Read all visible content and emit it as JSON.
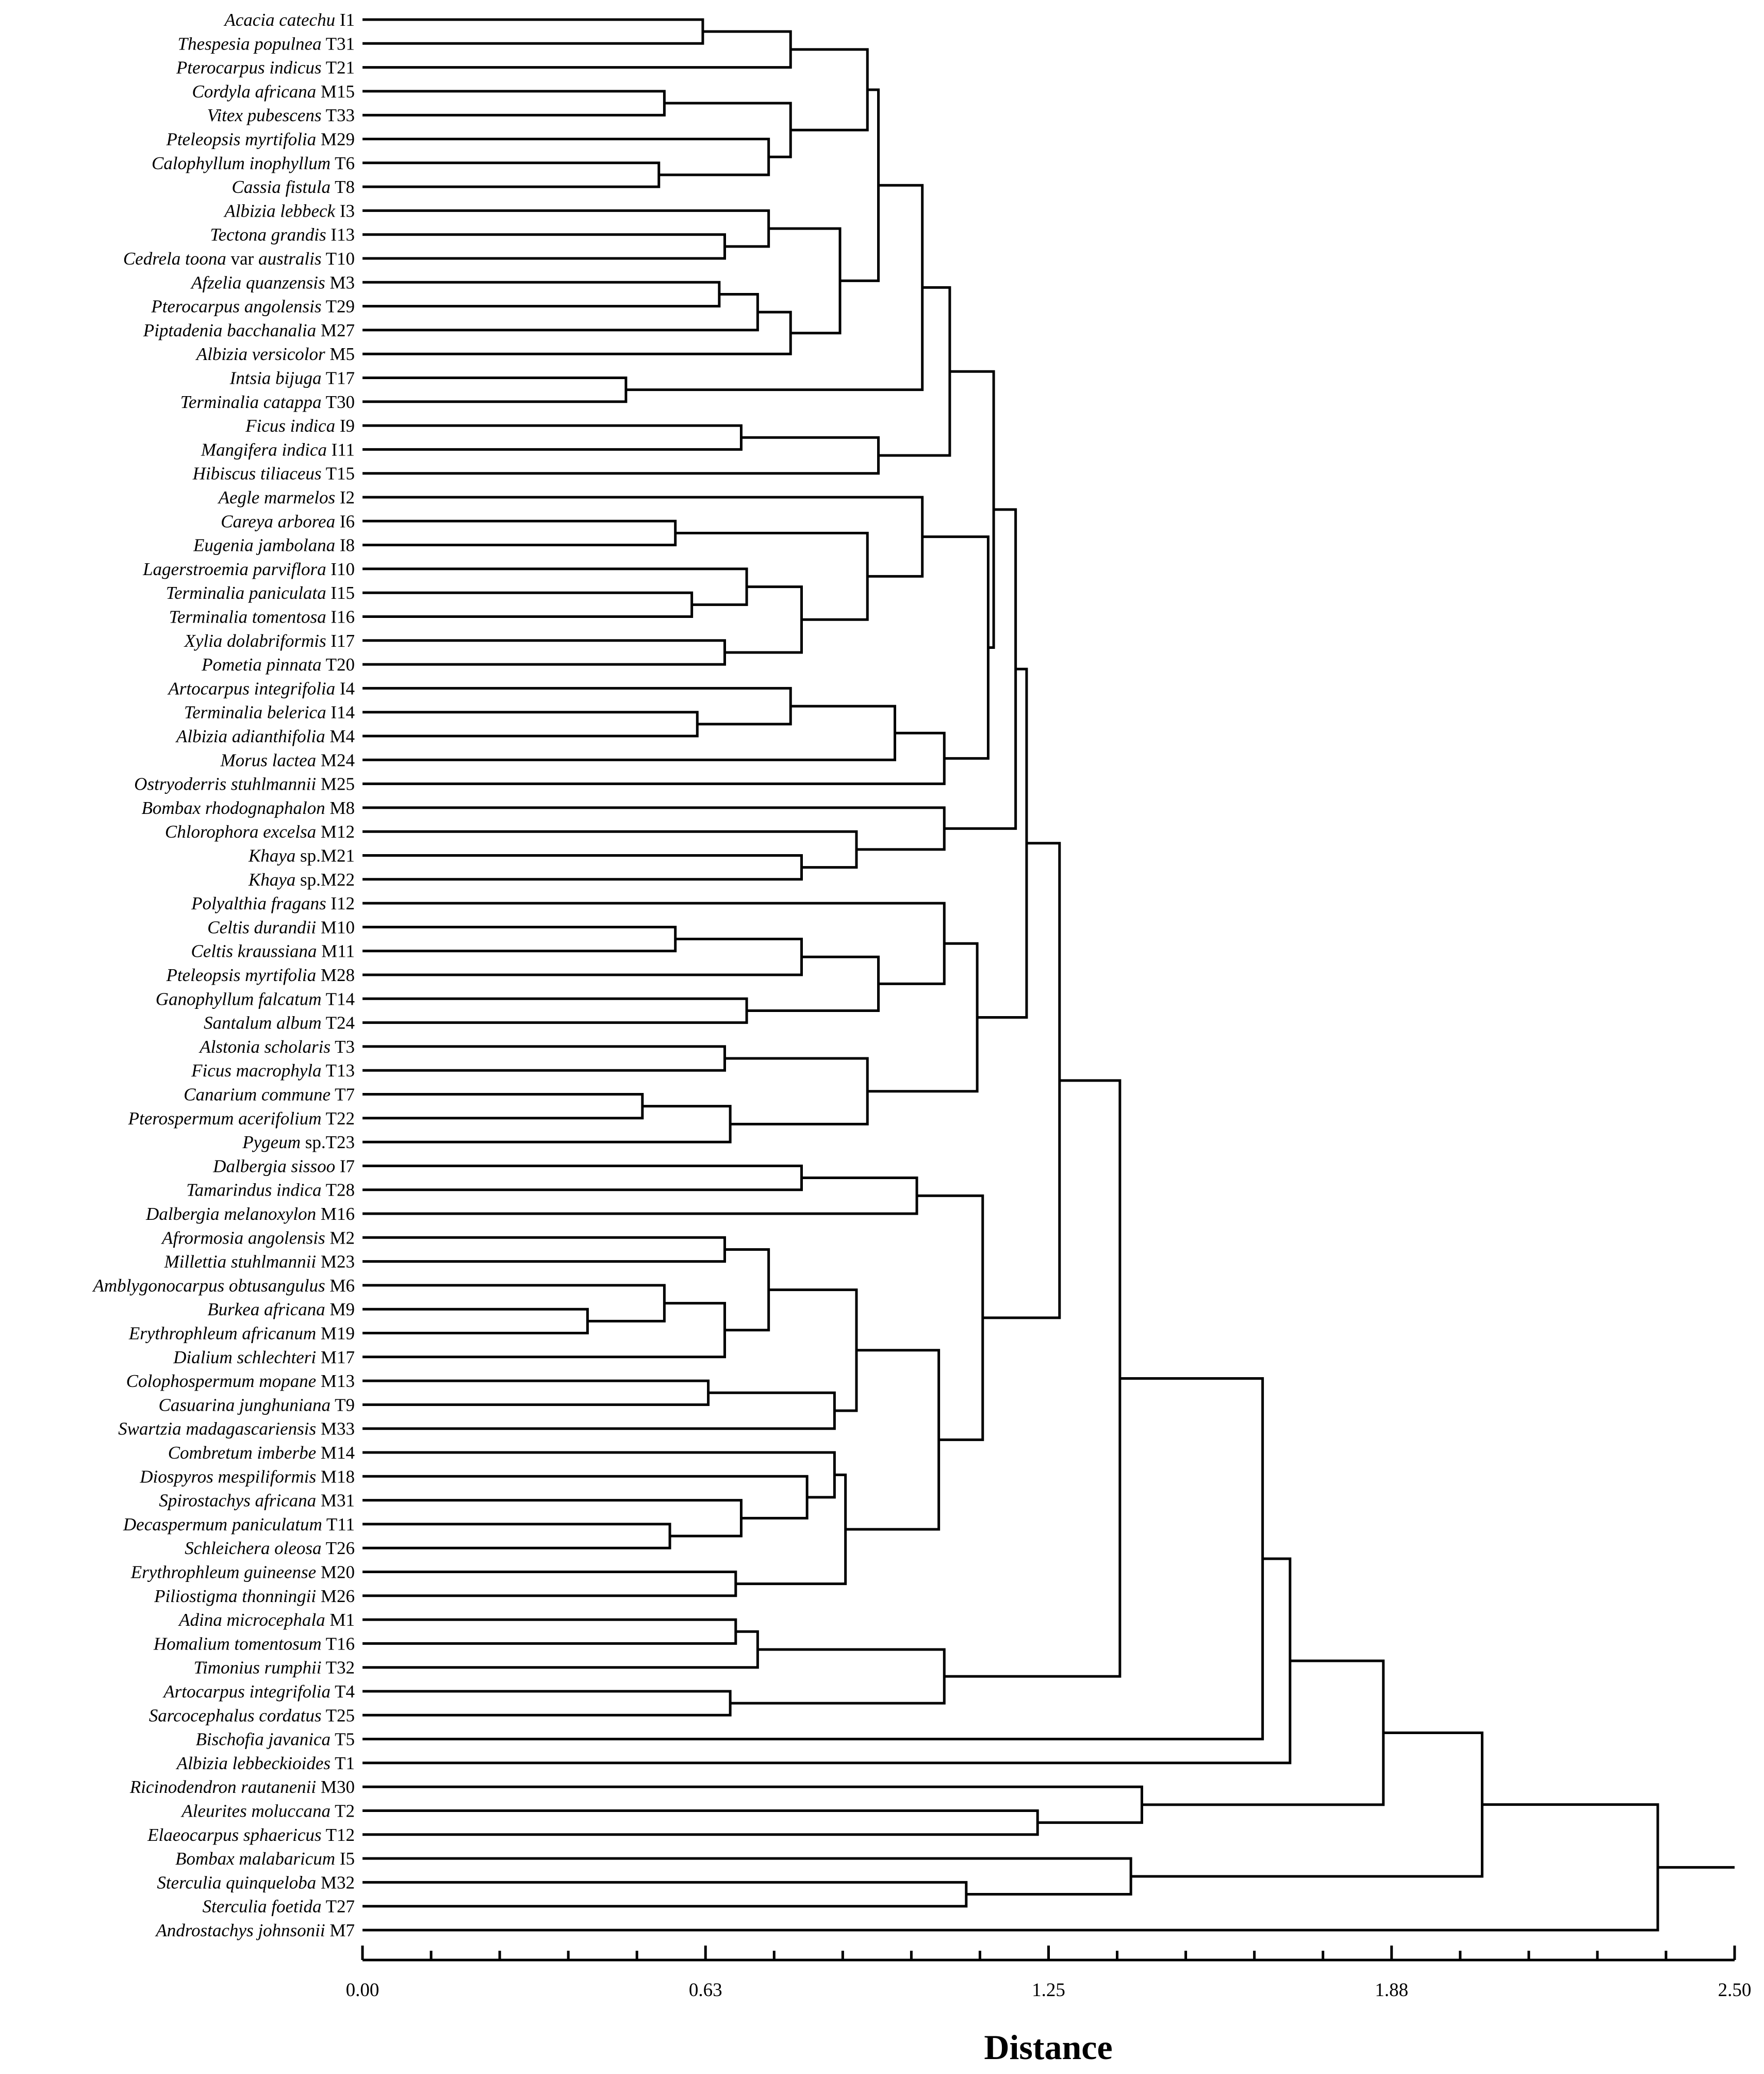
{
  "chart_data": {
    "type": "dendrogram",
    "title": "",
    "xlabel": "Distance",
    "xlim": [
      0,
      2.5
    ],
    "x_ticks": [
      0.0,
      0.63,
      1.25,
      1.88,
      2.5
    ],
    "x_tick_labels": [
      "0.00",
      "0.63",
      "1.25",
      "1.88",
      "2.50"
    ],
    "minor_ticks_per_interval": 4,
    "leaves": [
      {
        "name": "Acacia catechu",
        "code": "I1"
      },
      {
        "name": "Thespesia populnea",
        "code": "T31"
      },
      {
        "name": "Pterocarpus indicus",
        "code": "T21"
      },
      {
        "name": "Cordyla africana",
        "code": "M15"
      },
      {
        "name": "Vitex pubescens",
        "code": "T33"
      },
      {
        "name": "Pteleopsis myrtifolia",
        "code": "M29"
      },
      {
        "name": "Calophyllum inophyllum",
        "code": "T6"
      },
      {
        "name": "Cassia fistula",
        "code": "T8"
      },
      {
        "name": "Albizia lebbeck",
        "code": "I3"
      },
      {
        "name": "Tectona grandis",
        "code": "I13"
      },
      {
        "name": "Cedrela toona",
        "mid": "var",
        "name2": "australis",
        "code": "T10"
      },
      {
        "name": "Afzelia quanzensis",
        "code": "M3"
      },
      {
        "name": "Pterocarpus angolensis",
        "code": "T29"
      },
      {
        "name": "Piptadenia bacchanalia",
        "code": "M27"
      },
      {
        "name": "Albizia versicolor",
        "code": "M5"
      },
      {
        "name": "Intsia bijuga",
        "code": "T17"
      },
      {
        "name": "Terminalia catappa",
        "code": "T30"
      },
      {
        "name": "Ficus indica",
        "code": "I9"
      },
      {
        "name": "Mangifera indica",
        "code": "I11"
      },
      {
        "name": "Hibiscus tiliaceus",
        "code": "T15"
      },
      {
        "name": "Aegle marmelos",
        "code": "I2"
      },
      {
        "name": "Careya arborea",
        "code": "I6"
      },
      {
        "name": "Eugenia jambolana",
        "code": "I8"
      },
      {
        "name": "Lagerstroemia parviflora",
        "code": "I10"
      },
      {
        "name": "Terminalia paniculata",
        "code": "I15"
      },
      {
        "name": "Terminalia tomentosa",
        "code": "I16"
      },
      {
        "name": "Xylia dolabriformis",
        "code": "I17"
      },
      {
        "name": "Pometia pinnata",
        "code": "T20"
      },
      {
        "name": "Artocarpus integrifolia",
        "code": "I4"
      },
      {
        "name": "Terminalia belerica",
        "code": "I14"
      },
      {
        "name": "Albizia adianthifolia",
        "code": "M4"
      },
      {
        "name": "Morus lactea",
        "code": "M24"
      },
      {
        "name": "Ostryoderris stuhlmannii",
        "code": "M25"
      },
      {
        "name": "Bombax rhodognaphalon",
        "code": "M8"
      },
      {
        "name": "Chlorophora excelsa",
        "code": "M12"
      },
      {
        "name": "Khaya",
        "code": "sp.M21"
      },
      {
        "name": "Khaya",
        "code": "sp.M22"
      },
      {
        "name": "Polyalthia fragans",
        "code": "I12"
      },
      {
        "name": "Celtis durandii",
        "code": "M10"
      },
      {
        "name": "Celtis kraussiana",
        "code": "M11"
      },
      {
        "name": "Pteleopsis myrtifolia",
        "code": "M28"
      },
      {
        "name": "Ganophyllum falcatum",
        "code": "T14"
      },
      {
        "name": "Santalum album",
        "code": "T24"
      },
      {
        "name": "Alstonia scholaris",
        "code": "T3"
      },
      {
        "name": "Ficus macrophyla",
        "code": "T13"
      },
      {
        "name": "Canarium commune",
        "code": "T7"
      },
      {
        "name": "Pterospermum acerifolium",
        "code": "T22"
      },
      {
        "name": "Pygeum",
        "code": "sp.T23"
      },
      {
        "name": "Dalbergia sissoo",
        "code": "I7"
      },
      {
        "name": "Tamarindus indica",
        "code": "T28"
      },
      {
        "name": "Dalbergia melanoxylon",
        "code": "M16"
      },
      {
        "name": "Afrormosia angolensis",
        "code": "M2"
      },
      {
        "name": "Millettia stuhlmannii",
        "code": "M23"
      },
      {
        "name": "Amblygonocarpus obtusangulus",
        "code": "M6"
      },
      {
        "name": "Burkea africana",
        "code": "M9"
      },
      {
        "name": "Erythrophleum africanum",
        "code": "M19"
      },
      {
        "name": "Dialium schlechteri",
        "code": "M17"
      },
      {
        "name": "Colophospermum mopane",
        "code": "M13"
      },
      {
        "name": "Casuarina junghuniana",
        "code": "T9"
      },
      {
        "name": "Swartzia madagascariensis",
        "code": "M33"
      },
      {
        "name": "Combretum imberbe",
        "code": "M14"
      },
      {
        "name": "Diospyros mespiliformis",
        "code": "M18"
      },
      {
        "name": "Spirostachys africana",
        "code": "M31"
      },
      {
        "name": "Decaspermum paniculatum",
        "code": "T11"
      },
      {
        "name": "Schleichera oleosa",
        "code": "T26"
      },
      {
        "name": "Erythrophleum guineense",
        "code": "M20"
      },
      {
        "name": "Piliostigma thonningii",
        "code": "M26"
      },
      {
        "name": "Adina microcephala",
        "code": "M1"
      },
      {
        "name": "Homalium tomentosum",
        "code": "T16"
      },
      {
        "name": "Timonius rumphii",
        "code": "T32"
      },
      {
        "name": "Artocarpus integrifolia",
        "code": "T4"
      },
      {
        "name": "Sarcocephalus cordatus",
        "code": "T25"
      },
      {
        "name": "Bischofia javanica",
        "code": "T5"
      },
      {
        "name": "Albizia lebbeckioides",
        "code": "T1"
      },
      {
        "name": "Ricinodendron rautanenii",
        "code": "M30"
      },
      {
        "name": "Aleurites moluccana",
        "code": "T2"
      },
      {
        "name": "Elaeocarpus sphaericus",
        "code": "T12"
      },
      {
        "name": "Bombax malabaricum",
        "code": "I5"
      },
      {
        "name": "Sterculia quinqueloba",
        "code": "M32"
      },
      {
        "name": "Sterculia foetida",
        "code": "T27"
      },
      {
        "name": "Androstachys johnsonii",
        "code": "M7"
      }
    ],
    "merges": [
      {
        "id": "A",
        "a": 0,
        "b": 1,
        "h": 0.62
      },
      {
        "id": "B",
        "a": "A",
        "b": 2,
        "h": 0.78
      },
      {
        "id": "C",
        "a": 3,
        "b": 4,
        "h": 0.55
      },
      {
        "id": "D",
        "a": 6,
        "b": 7,
        "h": 0.54
      },
      {
        "id": "E",
        "a": 5,
        "b": "D",
        "h": 0.74
      },
      {
        "id": "F",
        "a": "C",
        "b": "E",
        "h": 0.78
      },
      {
        "id": "G",
        "a": "B",
        "b": "F",
        "h": 0.92
      },
      {
        "id": "H",
        "a": 9,
        "b": 10,
        "h": 0.66
      },
      {
        "id": "I",
        "a": 8,
        "b": "H",
        "h": 0.74
      },
      {
        "id": "J",
        "a": 11,
        "b": 12,
        "h": 0.65
      },
      {
        "id": "K",
        "a": "J",
        "b": 13,
        "h": 0.72
      },
      {
        "id": "L",
        "a": "K",
        "b": 14,
        "h": 0.78
      },
      {
        "id": "M",
        "a": "I",
        "b": "L",
        "h": 0.87
      },
      {
        "id": "N",
        "a": "G",
        "b": "M",
        "h": 0.94
      },
      {
        "id": "O",
        "a": 15,
        "b": 16,
        "h": 0.48
      },
      {
        "id": "P",
        "a": "N",
        "b": "O",
        "h": 1.02
      },
      {
        "id": "Q",
        "a": 17,
        "b": 18,
        "h": 0.69
      },
      {
        "id": "R",
        "a": "Q",
        "b": 19,
        "h": 0.94
      },
      {
        "id": "S",
        "a": "P",
        "b": "R",
        "h": 1.07
      },
      {
        "id": "T",
        "a": 21,
        "b": 22,
        "h": 0.57
      },
      {
        "id": "U",
        "a": 24,
        "b": 25,
        "h": 0.6
      },
      {
        "id": "V",
        "a": 23,
        "b": "U",
        "h": 0.7
      },
      {
        "id": "W",
        "a": 26,
        "b": 27,
        "h": 0.66
      },
      {
        "id": "X",
        "a": "V",
        "b": "W",
        "h": 0.8
      },
      {
        "id": "Y",
        "a": "T",
        "b": "X",
        "h": 0.92
      },
      {
        "id": "Z",
        "a": 20,
        "b": "Y",
        "h": 1.02
      },
      {
        "id": "AA",
        "a": 29,
        "b": 30,
        "h": 0.61
      },
      {
        "id": "AB",
        "a": 28,
        "b": "AA",
        "h": 0.78
      },
      {
        "id": "AC",
        "a": "AB",
        "b": 31,
        "h": 0.97
      },
      {
        "id": "AD",
        "a": "AC",
        "b": 32,
        "h": 1.06
      },
      {
        "id": "AE",
        "a": "Z",
        "b": "AD",
        "h": 1.14
      },
      {
        "id": "AF",
        "a": "S",
        "b": "AE",
        "h": 1.15
      },
      {
        "id": "AG",
        "a": 35,
        "b": 36,
        "h": 0.8
      },
      {
        "id": "AH",
        "a": 34,
        "b": "AG",
        "h": 0.9
      },
      {
        "id": "AI",
        "a": 33,
        "b": "AH",
        "h": 1.06
      },
      {
        "id": "AJ",
        "a": "AF",
        "b": "AI",
        "h": 1.19
      },
      {
        "id": "AK",
        "a": 38,
        "b": 39,
        "h": 0.57
      },
      {
        "id": "AL",
        "a": "AK",
        "b": 40,
        "h": 0.8
      },
      {
        "id": "AM",
        "a": 41,
        "b": 42,
        "h": 0.7
      },
      {
        "id": "AN",
        "a": "AL",
        "b": "AM",
        "h": 0.94
      },
      {
        "id": "AO",
        "a": 37,
        "b": "AN",
        "h": 1.06
      },
      {
        "id": "AP",
        "a": 45,
        "b": 46,
        "h": 0.51
      },
      {
        "id": "AQ",
        "a": "AP",
        "b": 47,
        "h": 0.67
      },
      {
        "id": "AR",
        "a": 43,
        "b": 44,
        "h": 0.66
      },
      {
        "id": "AS",
        "a": "AR",
        "b": "AQ",
        "h": 0.92
      },
      {
        "id": "AT",
        "a": "AO",
        "b": "AS",
        "h": 1.12
      },
      {
        "id": "AU",
        "a": "AJ",
        "b": "AT",
        "h": 1.21
      },
      {
        "id": "AV",
        "a": 48,
        "b": 49,
        "h": 0.8
      },
      {
        "id": "AW",
        "a": "AV",
        "b": 50,
        "h": 1.01
      },
      {
        "id": "AX",
        "a": 54,
        "b": 55,
        "h": 0.41
      },
      {
        "id": "AY",
        "a": 53,
        "b": "AX",
        "h": 0.55
      },
      {
        "id": "AZ",
        "a": "AY",
        "b": 56,
        "h": 0.66
      },
      {
        "id": "BA",
        "a": 51,
        "b": 52,
        "h": 0.66
      },
      {
        "id": "BB",
        "a": "BA",
        "b": "AZ",
        "h": 0.74
      },
      {
        "id": "BC",
        "a": 57,
        "b": 58,
        "h": 0.63
      },
      {
        "id": "BD",
        "a": "BC",
        "b": 59,
        "h": 0.86
      },
      {
        "id": "BE",
        "a": "BB",
        "b": "BD",
        "h": 0.9
      },
      {
        "id": "BF",
        "a": 63,
        "b": 64,
        "h": 0.56
      },
      {
        "id": "BG",
        "a": 62,
        "b": "BF",
        "h": 0.69
      },
      {
        "id": "BH",
        "a": 61,
        "b": "BG",
        "h": 0.81
      },
      {
        "id": "BI",
        "a": 60,
        "b": "BH",
        "h": 0.86
      },
      {
        "id": "BJ",
        "a": 65,
        "b": 66,
        "h": 0.68
      },
      {
        "id": "BK",
        "a": "BI",
        "b": "BJ",
        "h": 0.88
      },
      {
        "id": "BL",
        "a": "BE",
        "b": "BK",
        "h": 1.05
      },
      {
        "id": "BM",
        "a": "AW",
        "b": "BL",
        "h": 1.13
      },
      {
        "id": "BN",
        "a": "AU",
        "b": "BM",
        "h": 1.27
      },
      {
        "id": "BO",
        "a": 67,
        "b": 68,
        "h": 0.68
      },
      {
        "id": "BP",
        "a": "BO",
        "b": 69,
        "h": 0.72
      },
      {
        "id": "BQ",
        "a": 70,
        "b": 71,
        "h": 0.67
      },
      {
        "id": "BR",
        "a": "BP",
        "b": "BQ",
        "h": 1.06
      },
      {
        "id": "BS",
        "a": "BN",
        "b": "BR",
        "h": 1.38
      },
      {
        "id": "BT",
        "a": "BS",
        "b": 72,
        "h": 1.64
      },
      {
        "id": "BU",
        "a": "BT",
        "b": 73,
        "h": 1.69
      },
      {
        "id": "BV",
        "a": 75,
        "b": 76,
        "h": 1.23
      },
      {
        "id": "BW",
        "a": 74,
        "b": "BV",
        "h": 1.42
      },
      {
        "id": "BX",
        "a": "BU",
        "b": "BW",
        "h": 1.86
      },
      {
        "id": "BY",
        "a": 78,
        "b": 79,
        "h": 1.1
      },
      {
        "id": "BZ",
        "a": 77,
        "b": "BY",
        "h": 1.4
      },
      {
        "id": "CA",
        "a": "BX",
        "b": "BZ",
        "h": 2.04
      },
      {
        "id": "CB",
        "a": "CA",
        "b": 80,
        "h": 2.36
      }
    ],
    "root_extends_to": 2.5
  }
}
